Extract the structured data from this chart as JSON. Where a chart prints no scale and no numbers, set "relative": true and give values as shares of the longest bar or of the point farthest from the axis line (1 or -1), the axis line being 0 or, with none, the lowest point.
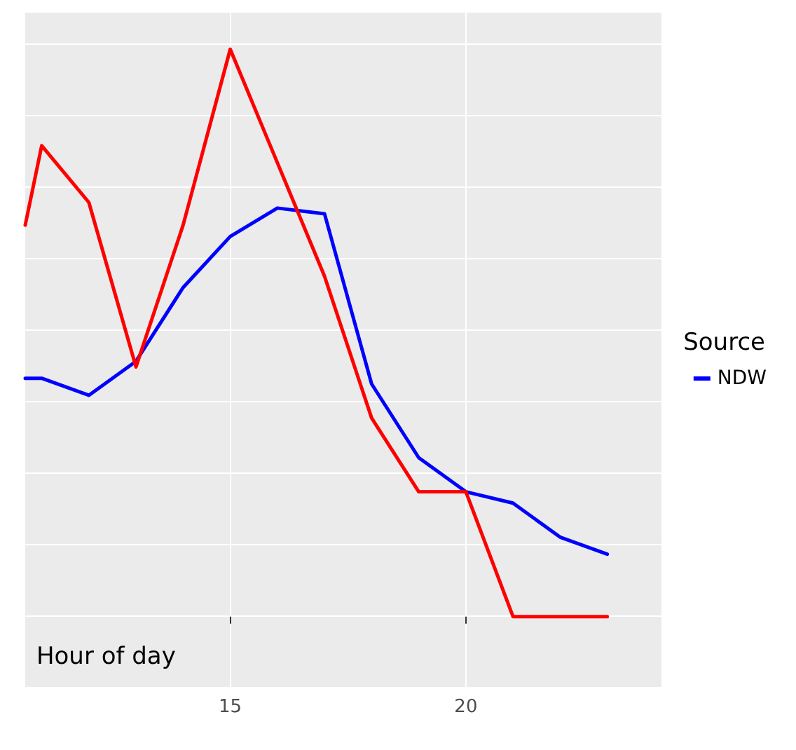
{
  "chart_data": {
    "type": "line",
    "relative": true,
    "xlabel": "Hour of day",
    "legend_title": "Source",
    "legend": "right",
    "grid": true,
    "line_style": "solid",
    "marker": "none",
    "x": [
      10.65,
      11,
      12,
      13,
      14,
      15,
      16,
      17,
      18,
      19,
      20,
      21,
      22,
      23
    ],
    "xlim": [
      10.65,
      24.15
    ],
    "xticks": [
      15,
      20
    ],
    "series": [
      {
        "name": "NDW",
        "color": "#0000ff",
        "values": [
          0.42,
          0.42,
          0.39,
          0.45,
          0.58,
          0.67,
          0.72,
          0.71,
          0.41,
          0.28,
          0.22,
          0.2,
          0.14,
          0.11
        ]
      },
      {
        "color": "#ff0000",
        "values": [
          0.69,
          0.83,
          0.73,
          0.44,
          0.69,
          1,
          0.8,
          0.6,
          0.35,
          0.22,
          0.22,
          0,
          0,
          0
        ]
      }
    ]
  }
}
